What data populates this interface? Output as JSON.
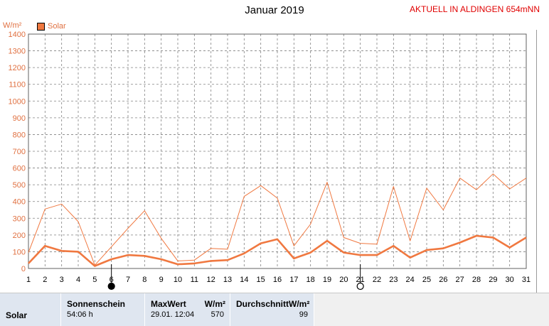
{
  "title": "Januar 2019",
  "status_text": "AKTUELL IN ALDINGEN 654mNN",
  "unit_label": "W/m²",
  "legend_label": "Solar",
  "colors": {
    "series": "#f07840",
    "grid": "#808080",
    "axis": "#e07040",
    "status": "#e00000"
  },
  "chart_data": {
    "type": "line",
    "xlabel": "",
    "ylabel": "W/m²",
    "ylim": [
      0,
      1400
    ],
    "y_ticks": [
      0,
      100,
      200,
      300,
      400,
      500,
      600,
      700,
      800,
      900,
      1000,
      1100,
      1200,
      1300,
      1400
    ],
    "x": [
      1,
      2,
      3,
      4,
      5,
      6,
      7,
      8,
      9,
      10,
      11,
      12,
      13,
      14,
      15,
      16,
      17,
      18,
      19,
      20,
      21,
      22,
      23,
      24,
      25,
      26,
      27,
      28,
      29,
      30,
      31
    ],
    "series": [
      {
        "name": "Max",
        "values": [
          95,
          355,
          385,
          280,
          20,
          130,
          240,
          345,
          180,
          45,
          50,
          120,
          115,
          430,
          495,
          420,
          135,
          265,
          515,
          185,
          150,
          145,
          490,
          165,
          480,
          350,
          540,
          470,
          565,
          475,
          540
        ]
      },
      {
        "name": "Solar",
        "values": [
          30,
          135,
          105,
          100,
          15,
          55,
          80,
          75,
          55,
          25,
          30,
          45,
          50,
          90,
          150,
          175,
          60,
          95,
          165,
          95,
          80,
          80,
          135,
          65,
          110,
          120,
          155,
          195,
          185,
          125,
          185
        ]
      }
    ],
    "grid": true,
    "legend": "top-left",
    "moon_markers": [
      {
        "day": 6,
        "phase": "new"
      },
      {
        "day": 21,
        "phase": "full"
      }
    ]
  },
  "table": {
    "row_label": "Solar",
    "sun_header": "Sonnenschein",
    "sun_value": "54:06 h",
    "max_header": "MaxWert",
    "max_unit": "W/m²",
    "max_date": "29.01.  12:04",
    "max_value": "570",
    "avg_header": "DurchschnittW/m²",
    "avg_value": "99"
  }
}
